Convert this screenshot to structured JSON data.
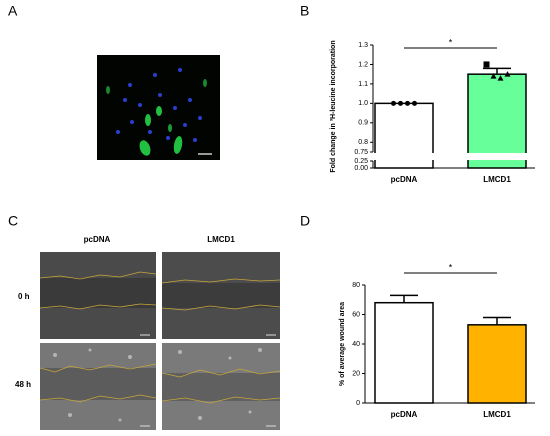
{
  "panel_labels": [
    "A",
    "B",
    "C",
    "D"
  ],
  "wound_images": {
    "columns": [
      "pcDNA",
      "LMCD1"
    ],
    "rows": [
      "0 h",
      "48 h"
    ]
  },
  "chart_data": [
    {
      "type": "bar",
      "y_label": "Fold change in ³H-leucine incorporation",
      "categories": [
        "pcDNA",
        "LMCD1"
      ],
      "values": [
        1.0,
        1.15
      ],
      "errors": [
        0,
        0.03
      ],
      "colors": [
        "#ffffff",
        "#66ff99"
      ],
      "points": [
        [
          1.0,
          1.0,
          1.0,
          1.0
        ],
        [
          1.2,
          1.14,
          1.13,
          1.15
        ]
      ],
      "point_markers": [
        [
          "circle",
          "circle",
          "circle",
          "circle"
        ],
        [
          "square",
          "triangle",
          "triangle",
          "triangle"
        ]
      ],
      "ylim": [
        0,
        1.3
      ],
      "axis_break": [
        0.25,
        0.75
      ],
      "yticks": [
        {
          "value": 0,
          "label": "0.00"
        },
        0.25,
        0.75,
        0.8,
        0.9,
        {
          "value": 1,
          "label": "1.0"
        },
        1.1,
        1.2,
        1.3
      ],
      "significance": "*"
    },
    {
      "type": "bar",
      "y_label": "% of average wound area",
      "categories": [
        "pcDNA",
        "LMCD1"
      ],
      "values": [
        68,
        53
      ],
      "errors": [
        5,
        5
      ],
      "colors": [
        "#ffffff",
        "#ffb300"
      ],
      "ylim": [
        0,
        80
      ],
      "yticks": [
        0,
        20,
        40,
        60,
        80
      ],
      "significance": "*"
    }
  ]
}
